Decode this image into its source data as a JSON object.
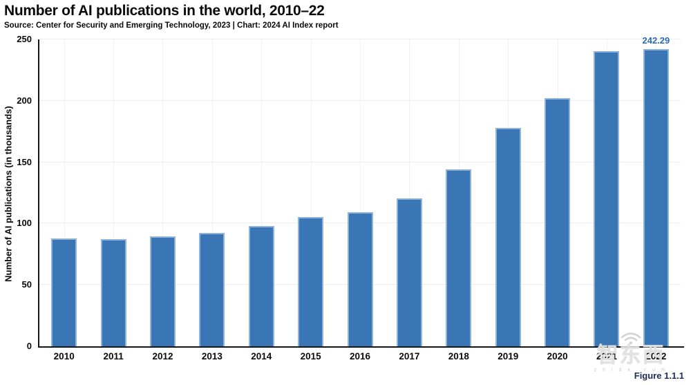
{
  "header": {
    "title": "Number of AI publications in the world, 2010–22",
    "subtitle": "Source: Center for Security and Emerging Technology, 2023 | Chart: 2024 AI Index report"
  },
  "chart_data": {
    "type": "bar",
    "title": "Number of AI publications in the world, 2010–22",
    "categories": [
      "2010",
      "2011",
      "2012",
      "2013",
      "2014",
      "2015",
      "2016",
      "2017",
      "2018",
      "2019",
      "2020",
      "2021",
      "2022"
    ],
    "values": [
      88.0,
      87.2,
      89.5,
      92.5,
      98.0,
      105.1,
      109.0,
      120.7,
      144.2,
      177.7,
      202.3,
      240.5,
      242.29
    ],
    "point_labels": {
      "2022": "242.29"
    },
    "xlabel": "",
    "ylabel": "Number of AI publications (in thousands)",
    "ylim": [
      0,
      250
    ],
    "yticks": [
      0,
      50,
      100,
      150,
      200,
      250
    ],
    "grid": true,
    "legend": "none",
    "bar_color": "#3a76b5",
    "bar_edge_color": "#8fb3d9",
    "point_label_color": "#2d6cb5",
    "axis_color": "#151515"
  },
  "footer": {
    "figure_label": "Figure 1.1.1"
  },
  "watermark": {
    "icon": "wifi-icon",
    "chars": "智东西",
    "domain": "z h i d x . c o m"
  }
}
